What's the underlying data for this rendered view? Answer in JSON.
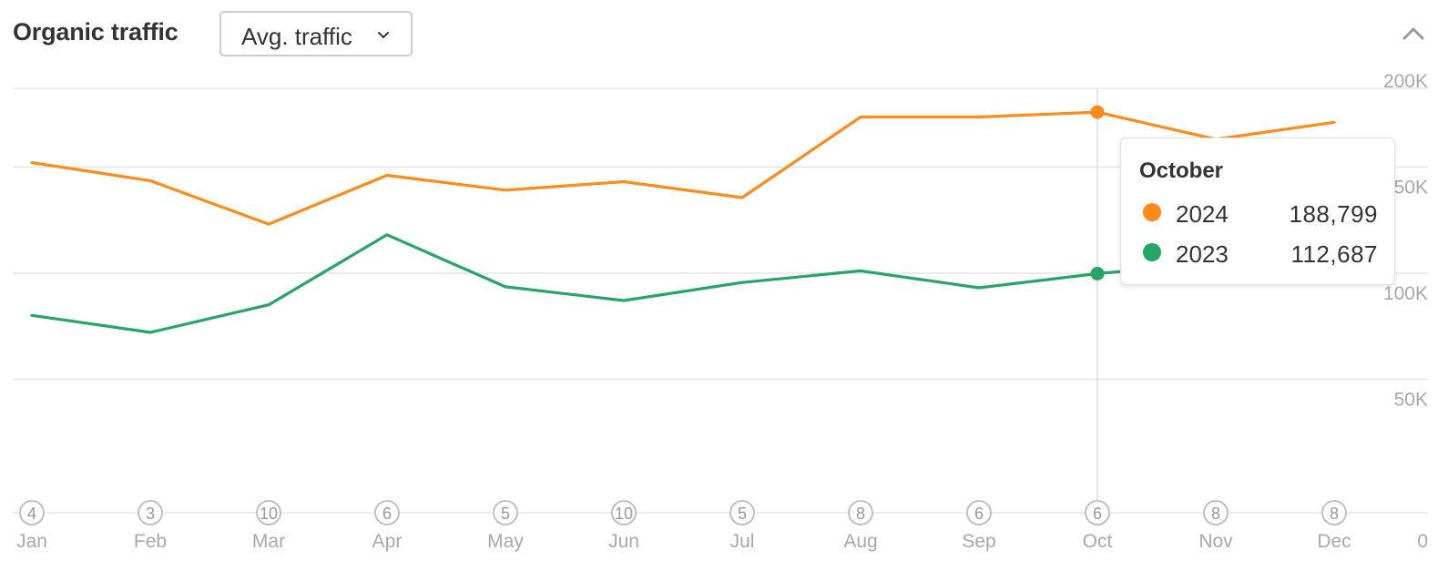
{
  "header": {
    "title": "Organic traffic",
    "dropdown_label": "Avg. traffic",
    "chevron_icon": "chevron-down-icon",
    "collapse_icon": "chevron-up-icon"
  },
  "tooltip": {
    "title": "October",
    "rows": [
      {
        "year": "2024",
        "value": "188,799",
        "color": "#FF8C1A"
      },
      {
        "year": "2023",
        "value": "112,687",
        "color": "#27A567"
      }
    ]
  },
  "chart_data": {
    "type": "line",
    "categories": [
      "Jan",
      "Feb",
      "Mar",
      "Apr",
      "May",
      "Jun",
      "Jul",
      "Aug",
      "Sep",
      "Oct",
      "Nov",
      "Dec"
    ],
    "markers": [
      "4",
      "3",
      "10",
      "6",
      "5",
      "10",
      "5",
      "8",
      "6",
      "6",
      "8",
      "8"
    ],
    "series": [
      {
        "name": "2024",
        "color": "#FF8C1A",
        "values": [
          165000,
          156500,
          136000,
          159000,
          152000,
          156000,
          148500,
          186500,
          186500,
          188799,
          176000,
          184000
        ]
      },
      {
        "name": "2023",
        "color": "#27A567",
        "values": [
          93000,
          85000,
          98000,
          131000,
          106500,
          100000,
          108500,
          114000,
          106000,
          112687,
          117500,
          119000
        ]
      }
    ],
    "ylim": [
      0,
      200000
    ],
    "yticks": [
      {
        "value": 0,
        "label": "0"
      },
      {
        "value": 50000,
        "label": "50K"
      },
      {
        "value": 100000,
        "label": "100K"
      },
      {
        "value": 150000,
        "label": "150K"
      },
      {
        "value": 200000,
        "label": "200K"
      }
    ],
    "highlight_index": 9,
    "grid": true,
    "grid_color": "#E6E6E6",
    "axis_text_color": "#A8A8A8"
  }
}
